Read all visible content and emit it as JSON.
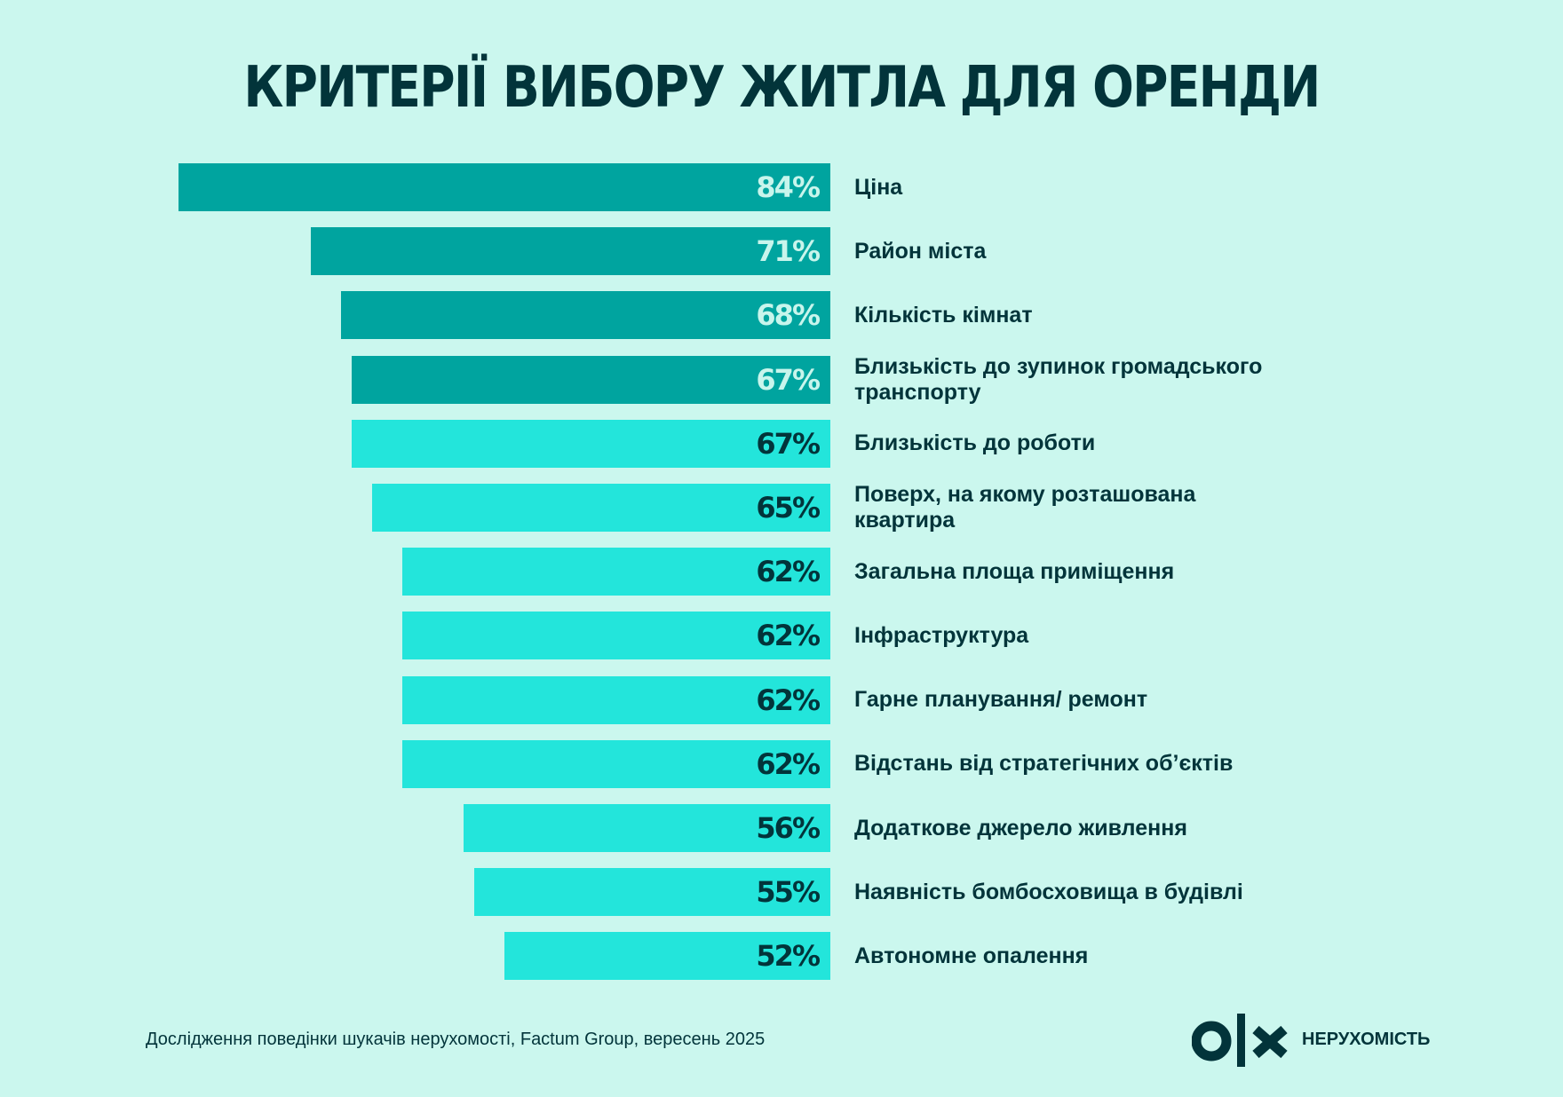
{
  "chart_data": {
    "type": "bar",
    "orientation": "horizontal",
    "title": "КРИТЕРІЇ ВИБОРУ ЖИТЛА ДЛЯ ОРЕНДИ",
    "unit": "%",
    "categories": [
      "Ціна",
      "Район міста",
      "Кількість кімнат",
      "Близькість до зупинок громадського транспорту",
      "Близькість до роботи",
      "Поверх, на якому розташована квартира",
      "Загальна площа приміщення",
      "Інфраструктура",
      "Гарне планування/ ремонт",
      "Відстань від стратегічних об’єктів",
      "Додаткове джерело живлення",
      "Наявність бомбосховища в будівлі",
      "Автономне опалення"
    ],
    "values": [
      84,
      71,
      68,
      67,
      67,
      65,
      62,
      62,
      62,
      62,
      56,
      55,
      52
    ],
    "value_labels": [
      "84%",
      "71%",
      "68%",
      "67%",
      "67%",
      "65%",
      "62%",
      "62%",
      "62%",
      "62%",
      "56%",
      "55%",
      "52%"
    ],
    "highlighted_count": 4,
    "colors": {
      "highlight": "#00a49f",
      "normal": "#23e5db",
      "highlight_text": "#c8f5ec",
      "normal_text": "#02343a"
    },
    "grid": false,
    "legend": "none"
  },
  "footer": {
    "source": "Дослідження поведінки шукачів нерухомості, Factum Group, вересень 2025"
  },
  "brand": {
    "logo": "OLX",
    "name": "НЕРУХОМІСТЬ"
  },
  "colors": {
    "background": "#cbf7ee",
    "text": "#02343a"
  }
}
